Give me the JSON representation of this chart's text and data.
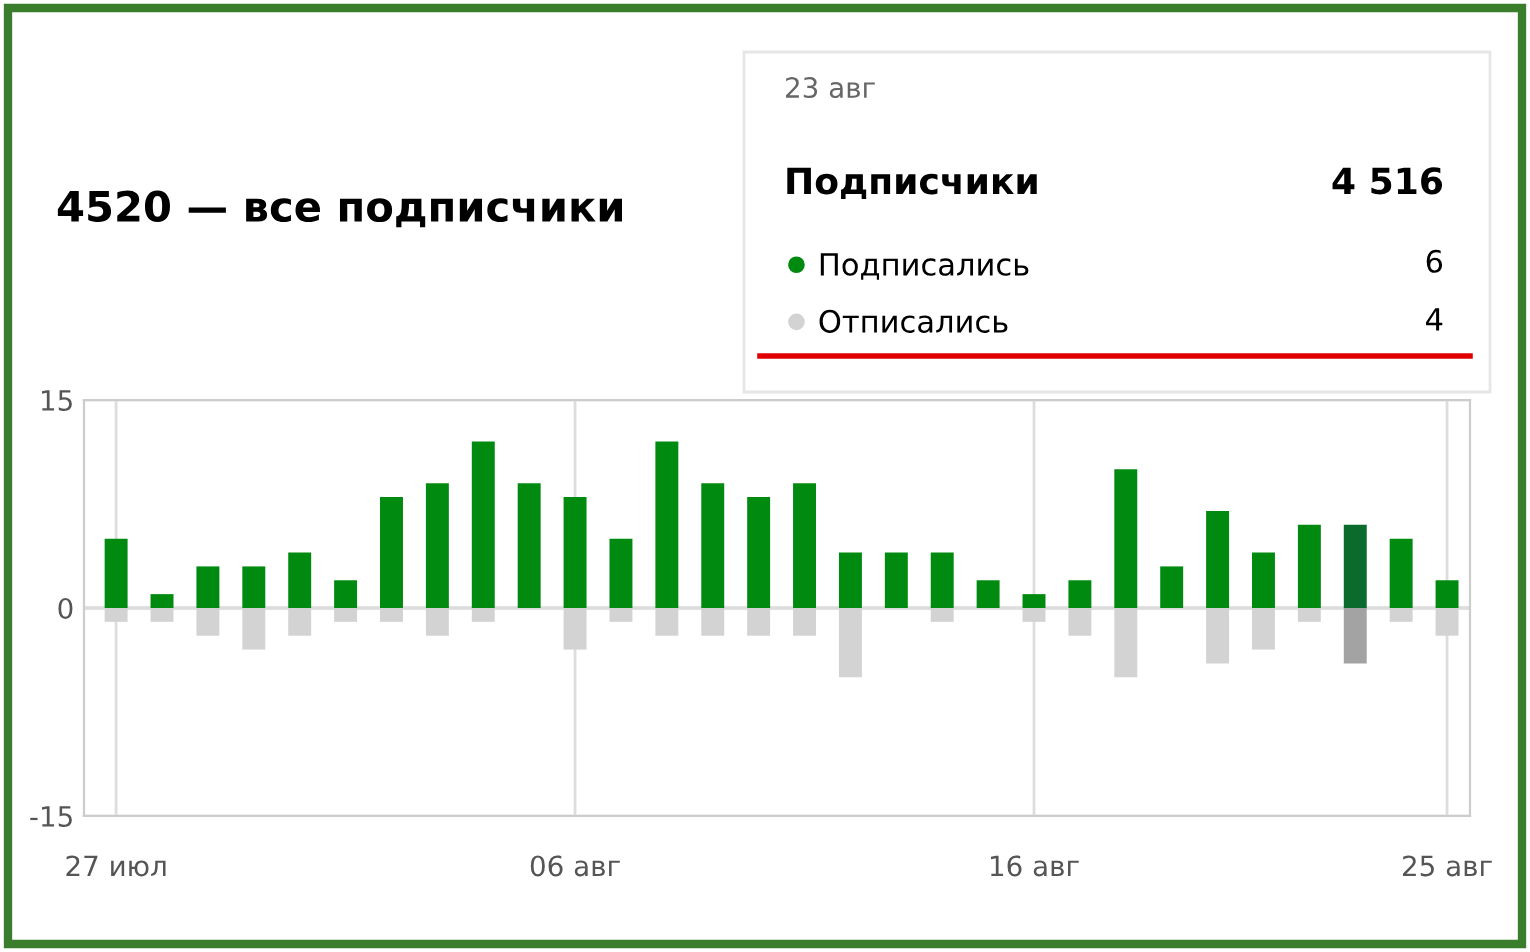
{
  "chart_data": {
    "type": "bar",
    "title": "4520 — все подписчики",
    "categories": [
      "27 июл",
      null,
      null,
      null,
      null,
      null,
      null,
      null,
      null,
      null,
      "06 авг",
      null,
      null,
      null,
      null,
      null,
      null,
      null,
      null,
      null,
      "16 авг",
      null,
      null,
      null,
      null,
      null,
      null,
      null,
      null,
      "25 авг"
    ],
    "series": [
      {
        "name": "Подписались",
        "color": "#008a0f",
        "colors": [
          "#008a0f",
          "#008a0f",
          "#008a0f",
          "#008a0f",
          "#008a0f",
          "#008a0f",
          "#008a0f",
          "#008a0f",
          "#008a0f",
          "#008a0f",
          "#008a0f",
          "#008a0f",
          "#008a0f",
          "#008a0f",
          "#008a0f",
          "#008a0f",
          "#008a0f",
          "#008a0f",
          "#008a0f",
          "#008a0f",
          "#008a0f",
          "#008a0f",
          "#008a0f",
          "#008a0f",
          "#008a0f",
          "#008a0f",
          "#008a0f",
          "#0b6b2c",
          "#008a0f",
          "#008a0f"
        ],
        "values": [
          5,
          1,
          3,
          3,
          4,
          2,
          8,
          9,
          12,
          9,
          8,
          5,
          12,
          9,
          8,
          9,
          4,
          4,
          4,
          2,
          1,
          2,
          10,
          3,
          7,
          4,
          6,
          6,
          5,
          2
        ]
      },
      {
        "name": "Отписались",
        "color": "#d3d3d3",
        "colors": [
          "#d3d3d3",
          "#d3d3d3",
          "#d3d3d3",
          "#d3d3d3",
          "#d3d3d3",
          "#d3d3d3",
          "#d3d3d3",
          "#d3d3d3",
          "#d3d3d3",
          "#d3d3d3",
          "#d3d3d3",
          "#d3d3d3",
          "#d3d3d3",
          "#d3d3d3",
          "#d3d3d3",
          "#d3d3d3",
          "#d3d3d3",
          "#d3d3d3",
          "#d3d3d3",
          "#d3d3d3",
          "#d3d3d3",
          "#d3d3d3",
          "#d3d3d3",
          "#d3d3d3",
          "#d3d3d3",
          "#d3d3d3",
          "#d3d3d3",
          "#a3a3a3",
          "#d3d3d3",
          "#d3d3d3"
        ],
        "values": [
          -1,
          -1,
          -2,
          -3,
          -2,
          -1,
          -1,
          -2,
          -1,
          0,
          -3,
          -1,
          -2,
          -2,
          -2,
          -2,
          -5,
          0,
          -1,
          0,
          -1,
          -2,
          -5,
          0,
          -4,
          -3,
          -1,
          -4,
          -1,
          -2
        ]
      }
    ],
    "stacked": true,
    "ylim": [
      -15,
      15
    ],
    "yticks": [
      -15,
      0,
      15
    ],
    "grid": true,
    "legend": "top right",
    "annotations": [
      "23 авг",
      "Подписчики",
      "4 516",
      "6",
      "4"
    ]
  }
}
